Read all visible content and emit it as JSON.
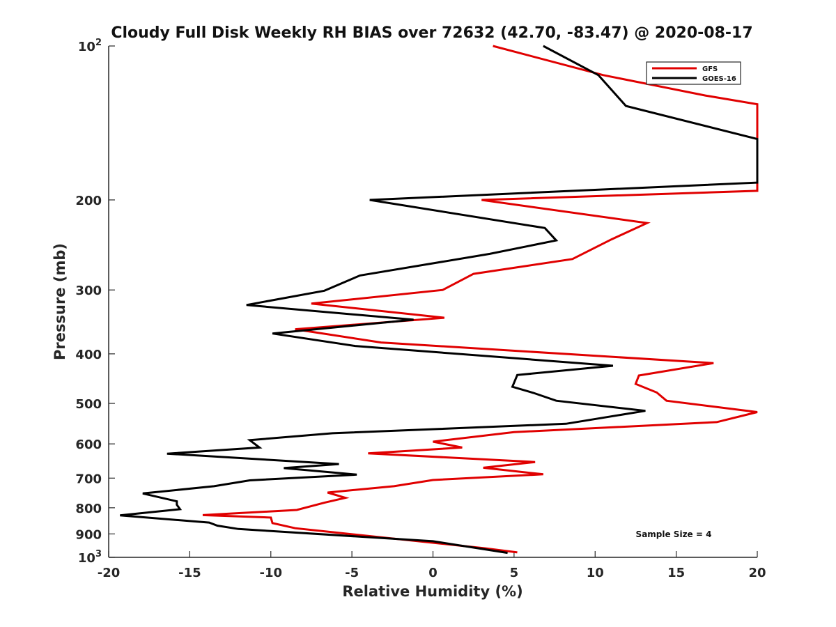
{
  "chart_data": {
    "type": "line",
    "title": "Cloudy Full Disk Weekly RH BIAS over 72632 (42.70, -83.47) @ 2020-08-17",
    "xlabel": "Relative Humidity (%)",
    "ylabel": "Pressure (mb)",
    "xlim": [
      -20,
      20
    ],
    "ylim": [
      100,
      1000
    ],
    "y_scale": "log",
    "y_reversed": true,
    "xticks": [
      -20,
      -15,
      -10,
      -5,
      0,
      5,
      10,
      15,
      20
    ],
    "yticks": [
      {
        "value": 100,
        "label": "10",
        "sup": "2"
      },
      {
        "value": 200,
        "label": "200"
      },
      {
        "value": 300,
        "label": "300"
      },
      {
        "value": 400,
        "label": "400"
      },
      {
        "value": 500,
        "label": "500"
      },
      {
        "value": 600,
        "label": "600"
      },
      {
        "value": 700,
        "label": "700"
      },
      {
        "value": 800,
        "label": "800"
      },
      {
        "value": 900,
        "label": "900"
      },
      {
        "value": 1000,
        "label": "10",
        "sup": "3"
      }
    ],
    "grid": false,
    "legend_position": "top-right",
    "annotation": "Sample Size = 4",
    "series": [
      {
        "name": "GFS",
        "color": "#e00000",
        "points": [
          [
            3.7,
            100
          ],
          [
            10.5,
            114
          ],
          [
            16.8,
            125
          ],
          [
            20.0,
            130
          ],
          [
            20.0,
            192
          ],
          [
            3.0,
            200
          ],
          [
            13.2,
            222
          ],
          [
            11.0,
            239
          ],
          [
            8.6,
            261
          ],
          [
            2.5,
            279
          ],
          [
            0.6,
            300
          ],
          [
            -7.5,
            319
          ],
          [
            0.7,
            340
          ],
          [
            -8.5,
            358
          ],
          [
            -3.2,
            380
          ],
          [
            17.3,
            417
          ],
          [
            12.7,
            441
          ],
          [
            12.5,
            458
          ],
          [
            13.8,
            476
          ],
          [
            14.4,
            494
          ],
          [
            20.0,
            520
          ],
          [
            17.5,
            544
          ],
          [
            5.0,
            569
          ],
          [
            0.0,
            594
          ],
          [
            1.8,
            610
          ],
          [
            -4.0,
            626
          ],
          [
            6.3,
            651
          ],
          [
            3.1,
            668
          ],
          [
            6.8,
            688
          ],
          [
            0.0,
            706
          ],
          [
            -2.4,
            726
          ],
          [
            -6.5,
            747
          ],
          [
            -5.4,
            765
          ],
          [
            -6.7,
            782
          ],
          [
            -8.4,
            808
          ],
          [
            -14.2,
            827
          ],
          [
            -10.0,
            836
          ],
          [
            -9.9,
            857
          ],
          [
            -8.5,
            877
          ],
          [
            3.2,
            960
          ],
          [
            5.2,
            978
          ]
        ]
      },
      {
        "name": "GOES-16",
        "color": "#000000",
        "points": [
          [
            6.8,
            100
          ],
          [
            10.2,
            114
          ],
          [
            11.9,
            131
          ],
          [
            20.0,
            152
          ],
          [
            20.0,
            185
          ],
          [
            -3.9,
            200
          ],
          [
            6.9,
            227
          ],
          [
            7.6,
            240
          ],
          [
            3.5,
            255
          ],
          [
            -4.5,
            281
          ],
          [
            -6.7,
            301
          ],
          [
            -11.5,
            321
          ],
          [
            -1.2,
            343
          ],
          [
            -9.9,
            365
          ],
          [
            -4.8,
            386
          ],
          [
            11.1,
            422
          ],
          [
            5.2,
            440
          ],
          [
            4.9,
            464
          ],
          [
            6.2,
            477
          ],
          [
            7.6,
            494
          ],
          [
            13.1,
            517
          ],
          [
            8.2,
            548
          ],
          [
            -6.2,
            572
          ],
          [
            -11.3,
            590
          ],
          [
            -10.7,
            610
          ],
          [
            -16.4,
            627
          ],
          [
            -5.8,
            657
          ],
          [
            -9.2,
            669
          ],
          [
            -4.7,
            689
          ],
          [
            -11.3,
            707
          ],
          [
            -13.5,
            726
          ],
          [
            -17.9,
            750
          ],
          [
            -15.8,
            777
          ],
          [
            -15.8,
            789
          ],
          [
            -15.6,
            805
          ],
          [
            -19.3,
            828
          ],
          [
            -13.8,
            855
          ],
          [
            -13.3,
            867
          ],
          [
            -12.0,
            880
          ],
          [
            0.0,
            930
          ],
          [
            4.6,
            980
          ]
        ]
      }
    ]
  }
}
